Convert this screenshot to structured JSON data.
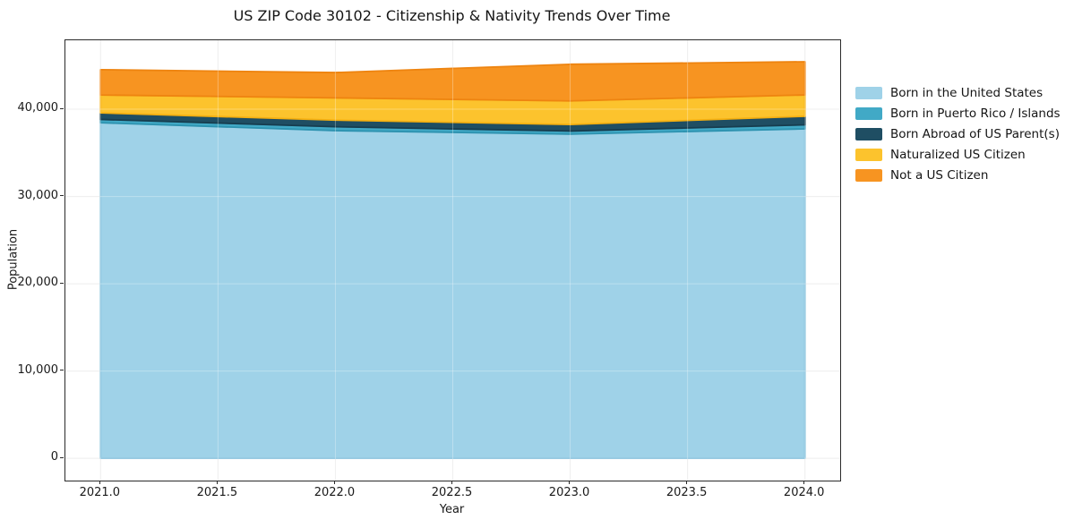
{
  "figure": {
    "title": "US ZIP Code 30102 - Citizenship & Nativity Trends Over Time",
    "xlabel": "Year",
    "ylabel": "Population"
  },
  "chart_data": {
    "type": "area",
    "stacked": true,
    "title": "US ZIP Code 30102 - Citizenship & Nativity Trends Over Time",
    "xlabel": "Year",
    "ylabel": "Population",
    "grid": true,
    "legend_position": "right-outside",
    "legend_frame": false,
    "x": [
      2021.0,
      2022.0,
      2023.0,
      2024.0
    ],
    "series": [
      {
        "name": "Born in the United States",
        "color": "#9fd2e8",
        "edge": "#82bfdc",
        "values": [
          38450,
          37550,
          37150,
          37750
        ]
      },
      {
        "name": "Born in Puerto Rico / Islands",
        "color": "#41a9c6",
        "edge": "#2e93b0",
        "values": [
          380,
          440,
          350,
          460
        ]
      },
      {
        "name": "Born Abroad of US Parent(s)",
        "color": "#1f4e63",
        "edge": "#173d4f",
        "values": [
          750,
          760,
          750,
          980
        ]
      },
      {
        "name": "Naturalized US Citizen",
        "color": "#fcc32d",
        "edge": "#f5b011",
        "values": [
          2050,
          2550,
          2700,
          2450
        ]
      },
      {
        "name": "Not a US Citizen",
        "color": "#f79421",
        "edge": "#ee8410",
        "values": [
          2900,
          2900,
          4200,
          3800
        ]
      }
    ],
    "totals": [
      44530,
      44200,
      45150,
      45440
    ],
    "xlim": [
      2020.85,
      2024.15
    ],
    "ylim": [
      -2550,
      47900
    ],
    "xticks": [
      {
        "v": 2021.0,
        "label": "2021.0"
      },
      {
        "v": 2021.5,
        "label": "2021.5"
      },
      {
        "v": 2022.0,
        "label": "2022.0"
      },
      {
        "v": 2022.5,
        "label": "2022.5"
      },
      {
        "v": 2023.0,
        "label": "2023.0"
      },
      {
        "v": 2023.5,
        "label": "2023.5"
      },
      {
        "v": 2024.0,
        "label": "2024.0"
      }
    ],
    "yticks": [
      {
        "v": 0,
        "label": "0"
      },
      {
        "v": 10000,
        "label": "10,000"
      },
      {
        "v": 20000,
        "label": "20,000"
      },
      {
        "v": 30000,
        "label": "30,000"
      },
      {
        "v": 40000,
        "label": "40,000"
      }
    ],
    "colors": {
      "grid": "#e8e8e8",
      "spine": "#2a2a2a",
      "background": "#ffffff"
    }
  }
}
